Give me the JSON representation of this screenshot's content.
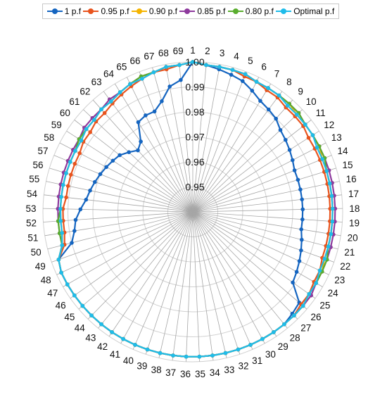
{
  "chart_data": {
    "type": "radar",
    "categories": [
      "1",
      "2",
      "3",
      "4",
      "5",
      "6",
      "7",
      "8",
      "9",
      "10",
      "11",
      "12",
      "13",
      "14",
      "15",
      "16",
      "17",
      "18",
      "19",
      "20",
      "21",
      "22",
      "23",
      "24",
      "25",
      "26",
      "27",
      "28",
      "29",
      "30",
      "31",
      "32",
      "33",
      "34",
      "35",
      "36",
      "37",
      "38",
      "39",
      "40",
      "41",
      "42",
      "43",
      "44",
      "45",
      "46",
      "47",
      "48",
      "49",
      "50",
      "51",
      "52",
      "53",
      "54",
      "55",
      "56",
      "57",
      "58",
      "59",
      "60",
      "61",
      "62",
      "63",
      "64",
      "65",
      "66",
      "67",
      "68",
      "69"
    ],
    "radial_axis": {
      "min": 0.94,
      "max": 1.0,
      "ticks": [
        "0.95",
        "0.96",
        "0.97",
        "0.98",
        "0.99",
        "1.00"
      ]
    },
    "legend_position": "top",
    "grid": true,
    "series": [
      {
        "name": "1 p.f",
        "color": "#1565c0",
        "values": [
          1.0,
          0.999,
          0.998,
          0.997,
          0.996,
          0.994,
          0.992,
          0.991,
          0.99,
          0.988,
          0.987,
          0.986,
          0.985,
          0.984,
          0.984,
          0.984,
          0.984,
          0.984,
          0.984,
          0.984,
          0.985,
          0.986,
          0.987,
          0.988,
          0.989,
          0.996,
          0.997,
          0.998,
          0.998,
          0.998,
          0.998,
          0.998,
          0.998,
          0.998,
          0.998,
          0.998,
          0.998,
          0.998,
          0.998,
          0.998,
          0.998,
          0.998,
          0.998,
          0.998,
          0.998,
          0.998,
          0.998,
          0.998,
          0.997,
          0.99,
          0.988,
          0.987,
          0.985,
          0.983,
          0.982,
          0.981,
          0.98,
          0.979,
          0.978,
          0.977,
          0.975,
          0.973,
          0.975,
          0.982,
          0.983,
          0.983,
          0.986,
          0.991,
          0.993
        ]
      },
      {
        "name": "0.95 p.f",
        "color": "#e8541e",
        "values": [
          1.0,
          0.999,
          0.999,
          0.999,
          0.998,
          0.998,
          0.997,
          0.997,
          0.996,
          0.996,
          0.996,
          0.995,
          0.995,
          0.995,
          0.995,
          0.995,
          0.995,
          0.995,
          0.995,
          0.995,
          0.995,
          0.995,
          0.996,
          0.996,
          0.997,
          0.997,
          0.998,
          0.998,
          0.998,
          0.998,
          0.998,
          0.998,
          0.998,
          0.998,
          0.998,
          0.998,
          0.998,
          0.998,
          0.998,
          0.998,
          0.998,
          0.998,
          0.998,
          0.998,
          0.998,
          0.998,
          0.998,
          0.998,
          0.997,
          0.993,
          0.992,
          0.992,
          0.992,
          0.991,
          0.991,
          0.991,
          0.991,
          0.991,
          0.992,
          0.992,
          0.993,
          0.993,
          0.994,
          0.995,
          0.996,
          0.997,
          0.998,
          0.998,
          0.999
        ]
      },
      {
        "name": "0.90 p.f",
        "color": "#f5b400",
        "values": [
          1.0,
          0.999,
          0.999,
          0.999,
          0.999,
          0.998,
          0.998,
          0.998,
          0.998,
          0.997,
          0.997,
          0.997,
          0.997,
          0.996,
          0.996,
          0.996,
          0.996,
          0.996,
          0.996,
          0.996,
          0.996,
          0.996,
          0.997,
          0.997,
          0.997,
          0.998,
          0.998,
          0.998,
          0.998,
          0.998,
          0.998,
          0.998,
          0.998,
          0.998,
          0.998,
          0.998,
          0.998,
          0.998,
          0.998,
          0.998,
          0.998,
          0.998,
          0.998,
          0.998,
          0.998,
          0.998,
          0.998,
          0.998,
          0.997,
          0.994,
          0.993,
          0.993,
          0.993,
          0.993,
          0.993,
          0.993,
          0.993,
          0.993,
          0.993,
          0.994,
          0.994,
          0.995,
          0.995,
          0.996,
          0.997,
          0.998,
          0.998,
          0.999,
          0.999
        ]
      },
      {
        "name": "0.85 p.f",
        "color": "#8e3a9d",
        "values": [
          1.0,
          0.999,
          0.999,
          0.999,
          0.999,
          0.998,
          0.998,
          0.998,
          0.998,
          0.998,
          0.997,
          0.997,
          0.997,
          0.997,
          0.997,
          0.997,
          0.997,
          0.997,
          0.997,
          0.997,
          0.997,
          0.997,
          0.997,
          0.997,
          0.998,
          0.998,
          0.998,
          0.998,
          0.998,
          0.998,
          0.998,
          0.998,
          0.998,
          0.998,
          0.998,
          0.998,
          0.998,
          0.998,
          0.998,
          0.998,
          0.998,
          0.998,
          0.998,
          0.998,
          0.998,
          0.998,
          0.998,
          0.998,
          0.997,
          0.994,
          0.994,
          0.994,
          0.994,
          0.994,
          0.994,
          0.994,
          0.994,
          0.994,
          0.994,
          0.995,
          0.995,
          0.995,
          0.996,
          0.996,
          0.997,
          0.998,
          0.998,
          0.999,
          0.999
        ]
      },
      {
        "name": "0.80 p.f",
        "color": "#5aad2e",
        "values": [
          1.0,
          0.999,
          0.999,
          0.999,
          0.999,
          0.998,
          0.998,
          0.998,
          0.998,
          0.998,
          0.997,
          0.997,
          0.997,
          0.997,
          0.996,
          0.996,
          0.996,
          0.996,
          0.996,
          0.996,
          0.996,
          0.997,
          0.997,
          0.997,
          0.997,
          0.998,
          0.998,
          0.998,
          0.998,
          0.998,
          0.998,
          0.998,
          0.998,
          0.998,
          0.998,
          0.998,
          0.998,
          0.998,
          0.998,
          0.998,
          0.998,
          0.998,
          0.998,
          0.998,
          0.998,
          0.998,
          0.998,
          0.998,
          0.997,
          0.994,
          0.994,
          0.994,
          0.993,
          0.993,
          0.993,
          0.993,
          0.993,
          0.993,
          0.994,
          0.994,
          0.994,
          0.995,
          0.995,
          0.996,
          0.997,
          0.998,
          0.998,
          0.999,
          0.999
        ]
      },
      {
        "name": "Optimal p.f",
        "color": "#1fbcea",
        "values": [
          1.0,
          0.999,
          0.999,
          0.999,
          0.999,
          0.998,
          0.998,
          0.998,
          0.997,
          0.997,
          0.997,
          0.997,
          0.996,
          0.996,
          0.996,
          0.996,
          0.996,
          0.996,
          0.996,
          0.996,
          0.996,
          0.996,
          0.996,
          0.997,
          0.997,
          0.998,
          0.998,
          0.998,
          0.998,
          0.998,
          0.998,
          0.998,
          0.998,
          0.998,
          0.998,
          0.998,
          0.998,
          0.998,
          0.998,
          0.998,
          0.998,
          0.998,
          0.998,
          0.998,
          0.998,
          0.998,
          0.998,
          0.998,
          0.997,
          0.994,
          0.993,
          0.993,
          0.993,
          0.993,
          0.993,
          0.993,
          0.993,
          0.993,
          0.993,
          0.994,
          0.994,
          0.995,
          0.995,
          0.996,
          0.997,
          0.997,
          0.998,
          0.999,
          0.999
        ]
      }
    ]
  }
}
